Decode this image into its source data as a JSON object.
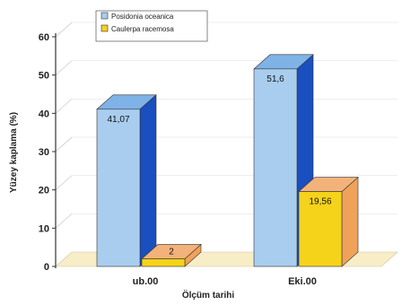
{
  "chart_data": {
    "type": "bar",
    "categories": [
      "ub.00",
      "Eki.00"
    ],
    "series": [
      {
        "name": "Posidonia oceanica",
        "values": [
          41.07,
          51.6
        ],
        "color": "#a9cdee",
        "side_color": "#1a4fbf",
        "top_color": "#7fb2e6"
      },
      {
        "name": "Caulerpa racemosa",
        "values": [
          2,
          19.56
        ],
        "color": "#f5d31a",
        "side_color": "#f0a25a",
        "top_color": "#f3b27a"
      }
    ],
    "data_labels": [
      "41,07",
      "2",
      "51,6",
      "19,56"
    ],
    "ytick_labels": [
      "0",
      "10",
      "20",
      "30",
      "40",
      "50",
      "60"
    ],
    "ylim": [
      0,
      60
    ],
    "xlabel": "Ölçüm tarihi",
    "ylabel": "Yüzey kaplama (%)",
    "legend_position": "top-left",
    "floor_color": "#f7eec8"
  }
}
